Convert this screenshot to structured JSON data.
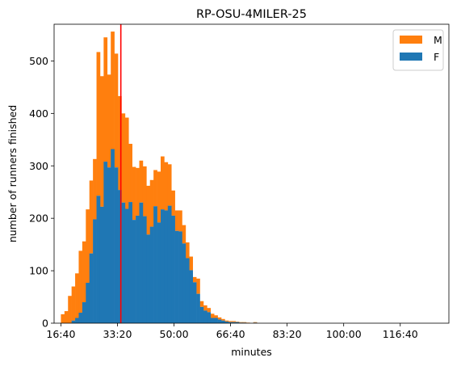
{
  "chart_data": {
    "type": "bar",
    "subtype": "stacked-histogram",
    "title": "RP-OSU-4MILER-25",
    "xlabel": "minutes",
    "ylabel": "number of runners finished",
    "x_unit": "seconds",
    "xlim": [
      880,
      7860
    ],
    "ylim": [
      0,
      570
    ],
    "x_ticks": [
      {
        "value": 1000,
        "label": "16:40"
      },
      {
        "value": 2000,
        "label": "33:20"
      },
      {
        "value": 3000,
        "label": "50:00"
      },
      {
        "value": 4000,
        "label": "66:40"
      },
      {
        "value": 5000,
        "label": "83:20"
      },
      {
        "value": 6000,
        "label": "100:00"
      },
      {
        "value": 7000,
        "label": "116:40"
      }
    ],
    "y_ticks": [
      0,
      100,
      200,
      300,
      400,
      500
    ],
    "bin_edges": [
      1000,
      1063,
      1126,
      1189,
      1252,
      1315,
      1378,
      1441,
      1504,
      1567,
      1630,
      1693,
      1756,
      1819,
      1882,
      1945,
      2008,
      2071,
      2134,
      2197,
      2260,
      2323,
      2386,
      2449,
      2512,
      2575,
      2638,
      2701,
      2764,
      2827,
      2890,
      2953,
      3016,
      3079,
      3142,
      3205,
      3268,
      3331,
      3394,
      3457,
      3520,
      3583,
      3646,
      3709,
      3772,
      3835,
      3898,
      3961,
      4024,
      4087,
      4150,
      4213,
      4276,
      4339,
      4402,
      4465,
      4528,
      4591,
      4654,
      4717,
      4780,
      4843,
      4906,
      4969,
      5032,
      5095,
      5158,
      5221,
      5284,
      5347,
      5410,
      5473,
      5536,
      5599,
      5662,
      5725,
      5788,
      5851,
      5914,
      5977,
      6040,
      6103,
      6166,
      6229,
      6292,
      6355,
      6418,
      6481,
      6544,
      6607,
      6670,
      6733,
      6796,
      6859,
      6922,
      6985,
      7048,
      7111,
      7174,
      7237,
      7300,
      7363,
      7426,
      7489,
      7552,
      7615,
      7678,
      7741
    ],
    "series": [
      {
        "name": "F",
        "color": "#1f77b4",
        "values": [
          0,
          0,
          0,
          5,
          10,
          20,
          40,
          77,
          133,
          198,
          243,
          222,
          308,
          297,
          332,
          297,
          254,
          230,
          218,
          231,
          197,
          205,
          230,
          204,
          169,
          184,
          223,
          192,
          217,
          215,
          224,
          205,
          176,
          175,
          152,
          124,
          101,
          78,
          56,
          31,
          24,
          21,
          10,
          10,
          7,
          5,
          3,
          2,
          2,
          2,
          1,
          1,
          0,
          0,
          1,
          0,
          0,
          0,
          0,
          0,
          0,
          0,
          0,
          0,
          0,
          0,
          0,
          0,
          0,
          0,
          0,
          0,
          0,
          0,
          0,
          0,
          0,
          0,
          0,
          0,
          0,
          0,
          0,
          0,
          0,
          0,
          0,
          0,
          0,
          0,
          0,
          0,
          0,
          0,
          0,
          0,
          0,
          0,
          0,
          0,
          0,
          0,
          0,
          0,
          0,
          0,
          0,
          0,
          0,
          0,
          0,
          0,
          0,
          0
        ]
      },
      {
        "name": "M",
        "color": "#ff7f0e",
        "values": [
          17,
          23,
          52,
          65,
          85,
          118,
          116,
          140,
          139,
          115,
          274,
          249,
          237,
          177,
          224,
          217,
          179,
          170,
          174,
          111,
          101,
          91,
          80,
          95,
          93,
          89,
          69,
          97,
          101,
          92,
          79,
          48,
          39,
          40,
          35,
          30,
          26,
          10,
          29,
          11,
          10,
          8,
          8,
          5,
          4,
          3,
          2,
          2,
          2,
          1,
          1,
          1,
          1,
          0,
          1,
          0,
          0,
          0,
          0,
          0,
          0,
          0,
          0,
          0,
          0,
          0,
          0,
          0,
          0,
          0,
          0,
          0,
          0,
          0,
          0,
          0,
          0,
          0,
          0,
          0,
          0,
          0,
          0,
          0,
          0,
          0,
          0,
          0,
          0,
          0,
          0,
          0,
          0,
          0,
          0,
          0,
          0,
          0,
          0,
          0,
          0,
          0,
          0,
          0,
          0,
          0,
          0,
          0,
          0,
          0,
          0,
          0,
          0,
          0
        ]
      }
    ],
    "reference_line": {
      "x": 2060,
      "color": "#ff0000"
    },
    "legend": {
      "position": "top-right",
      "entries": [
        {
          "label": "M",
          "color": "#ff7f0e"
        },
        {
          "label": "F",
          "color": "#1f77b4"
        }
      ]
    },
    "grid": false
  }
}
